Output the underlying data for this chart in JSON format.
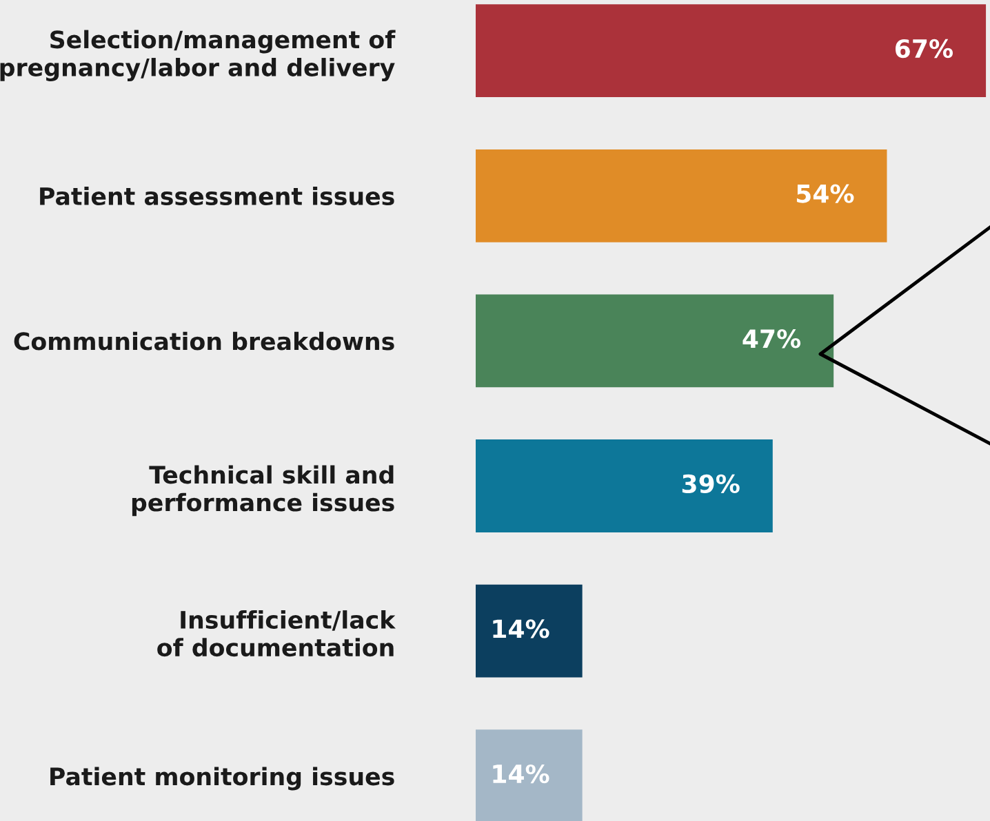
{
  "chart_data": {
    "type": "bar",
    "orientation": "horizontal",
    "categories": [
      "Selection/management of\npregnancy/labor and delivery",
      "Patient assessment issues",
      "Communication breakdowns",
      "Technical skill and\nperformance issues",
      "Insufficient/lack\nof documentation",
      "Patient monitoring issues"
    ],
    "values": [
      67,
      54,
      47,
      39,
      14,
      14
    ],
    "colors": [
      "#ab323a",
      "#e08c27",
      "#4a8459",
      "#0d7799",
      "#0c3f5f",
      "#a4b7c7"
    ],
    "value_labels": [
      "67%",
      "54%",
      "47%",
      "39%",
      "14%",
      "14%"
    ],
    "grid": false,
    "legend": false
  }
}
